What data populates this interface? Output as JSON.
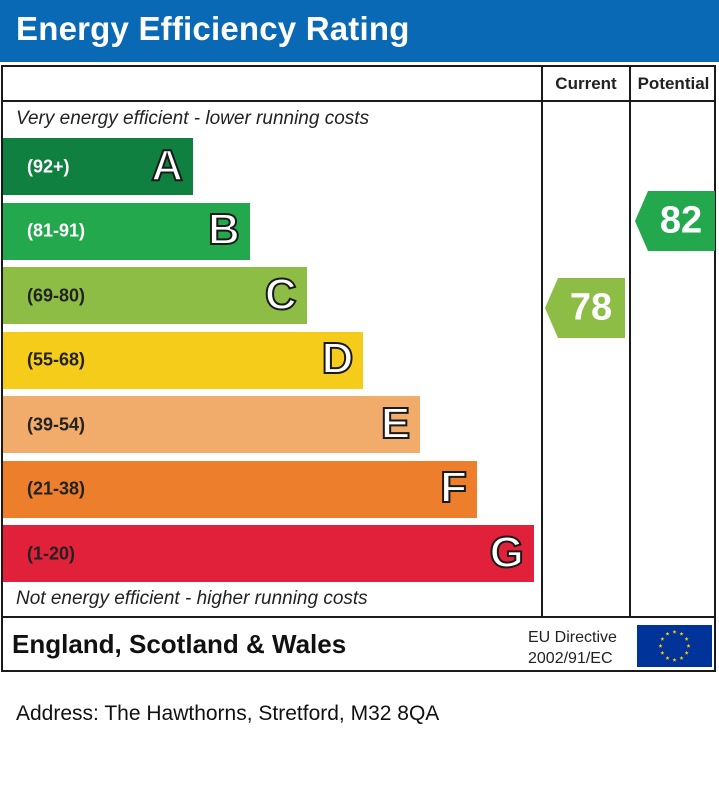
{
  "header": {
    "title": "Energy Efficiency Rating"
  },
  "columns": {
    "current": "Current",
    "potential": "Potential"
  },
  "notes": {
    "top": "Very energy efficient - lower running costs",
    "bottom": "Not energy efficient - higher running costs"
  },
  "chart_data": {
    "type": "bar",
    "title": "Energy Efficiency Rating",
    "categories": [
      "A",
      "B",
      "C",
      "D",
      "E",
      "F",
      "G"
    ],
    "ranges": [
      "(92+)",
      "(81-91)",
      "(69-80)",
      "(55-68)",
      "(39-54)",
      "(21-38)",
      "(1-20)"
    ],
    "colors": [
      "#108040",
      "#23a84d",
      "#8dbd45",
      "#f6cc1a",
      "#f1ab6a",
      "#ed7f2c",
      "#e12039"
    ],
    "current": {
      "label": "Current",
      "value": 78,
      "band": "C",
      "color": "#8dbd45"
    },
    "potential": {
      "label": "Potential",
      "value": 82,
      "band": "B",
      "color": "#23a84d"
    }
  },
  "footer": {
    "region": "England, Scotland & Wales",
    "directive_line1": "EU Directive",
    "directive_line2": "2002/91/EC",
    "flag_icon": "eu-flag-icon"
  },
  "address": "Address: The Hawthorns, Stretford, M32 8QA"
}
